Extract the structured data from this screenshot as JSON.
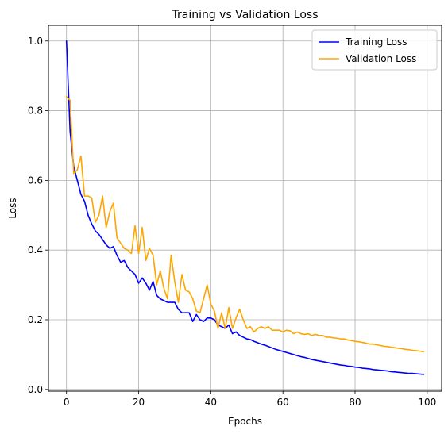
{
  "chart_data": {
    "type": "line",
    "title": "Training vs Validation Loss",
    "xlabel": "Epochs",
    "ylabel": "Loss",
    "xlim": [
      -5,
      104
    ],
    "ylim": [
      -0.005,
      1.045
    ],
    "xticks": [
      0,
      20,
      40,
      60,
      80,
      100
    ],
    "yticks": [
      0.0,
      0.2,
      0.4,
      0.6,
      0.8,
      1.0
    ],
    "xtick_labels": [
      "0",
      "20",
      "40",
      "60",
      "80",
      "100"
    ],
    "ytick_labels": [
      "0.0",
      "0.2",
      "0.4",
      "0.6",
      "0.8",
      "1.0"
    ],
    "grid": true,
    "legend_position": "top-right",
    "series": [
      {
        "name": "Training Loss",
        "color": "#0000ff",
        "x": [
          0,
          1,
          2,
          3,
          4,
          5,
          6,
          7,
          8,
          9,
          10,
          11,
          12,
          13,
          14,
          15,
          16,
          17,
          18,
          19,
          20,
          21,
          22,
          23,
          24,
          25,
          26,
          27,
          28,
          29,
          30,
          31,
          32,
          33,
          34,
          35,
          36,
          37,
          38,
          39,
          40,
          41,
          42,
          43,
          44,
          45,
          46,
          47,
          48,
          49,
          50,
          51,
          52,
          53,
          54,
          55,
          56,
          57,
          58,
          59,
          60,
          61,
          62,
          63,
          64,
          65,
          66,
          67,
          68,
          69,
          70,
          71,
          72,
          73,
          74,
          75,
          76,
          77,
          78,
          79,
          80,
          81,
          82,
          83,
          84,
          85,
          86,
          87,
          88,
          89,
          90,
          91,
          92,
          93,
          94,
          95,
          96,
          97,
          98,
          99
        ],
        "y": [
          1.0,
          0.74,
          0.64,
          0.6,
          0.56,
          0.54,
          0.5,
          0.475,
          0.455,
          0.445,
          0.43,
          0.415,
          0.405,
          0.41,
          0.385,
          0.365,
          0.37,
          0.35,
          0.34,
          0.33,
          0.305,
          0.32,
          0.305,
          0.285,
          0.31,
          0.27,
          0.26,
          0.255,
          0.25,
          0.25,
          0.25,
          0.23,
          0.22,
          0.22,
          0.22,
          0.195,
          0.215,
          0.2,
          0.195,
          0.205,
          0.205,
          0.2,
          0.185,
          0.18,
          0.175,
          0.185,
          0.16,
          0.165,
          0.155,
          0.15,
          0.145,
          0.143,
          0.138,
          0.134,
          0.13,
          0.127,
          0.123,
          0.119,
          0.115,
          0.112,
          0.109,
          0.106,
          0.103,
          0.1,
          0.097,
          0.094,
          0.092,
          0.089,
          0.086,
          0.084,
          0.082,
          0.08,
          0.078,
          0.076,
          0.074,
          0.072,
          0.07,
          0.069,
          0.067,
          0.066,
          0.064,
          0.063,
          0.061,
          0.06,
          0.059,
          0.057,
          0.056,
          0.055,
          0.054,
          0.053,
          0.051,
          0.05,
          0.049,
          0.048,
          0.047,
          0.046,
          0.046,
          0.045,
          0.044,
          0.043
        ]
      },
      {
        "name": "Validation Loss",
        "color": "#ffa500",
        "x": [
          0,
          1,
          2,
          3,
          4,
          5,
          6,
          7,
          8,
          9,
          10,
          11,
          12,
          13,
          14,
          15,
          16,
          17,
          18,
          19,
          20,
          21,
          22,
          23,
          24,
          25,
          26,
          27,
          28,
          29,
          30,
          31,
          32,
          33,
          34,
          35,
          36,
          37,
          38,
          39,
          40,
          41,
          42,
          43,
          44,
          45,
          46,
          47,
          48,
          49,
          50,
          51,
          52,
          53,
          54,
          55,
          56,
          57,
          58,
          59,
          60,
          61,
          62,
          63,
          64,
          65,
          66,
          67,
          68,
          69,
          70,
          71,
          72,
          73,
          74,
          75,
          76,
          77,
          78,
          79,
          80,
          81,
          82,
          83,
          84,
          85,
          86,
          87,
          88,
          89,
          90,
          91,
          92,
          93,
          94,
          95,
          96,
          97,
          98,
          99
        ],
        "y": [
          0.84,
          0.83,
          0.62,
          0.63,
          0.67,
          0.555,
          0.555,
          0.55,
          0.48,
          0.5,
          0.555,
          0.465,
          0.51,
          0.535,
          0.435,
          0.42,
          0.405,
          0.4,
          0.39,
          0.47,
          0.39,
          0.465,
          0.37,
          0.405,
          0.385,
          0.3,
          0.34,
          0.29,
          0.26,
          0.385,
          0.31,
          0.25,
          0.33,
          0.285,
          0.28,
          0.26,
          0.225,
          0.22,
          0.26,
          0.3,
          0.245,
          0.225,
          0.175,
          0.22,
          0.175,
          0.235,
          0.175,
          0.205,
          0.23,
          0.2,
          0.175,
          0.18,
          0.165,
          0.175,
          0.18,
          0.175,
          0.18,
          0.17,
          0.17,
          0.17,
          0.165,
          0.17,
          0.168,
          0.16,
          0.165,
          0.16,
          0.158,
          0.16,
          0.155,
          0.158,
          0.155,
          0.155,
          0.15,
          0.15,
          0.148,
          0.147,
          0.145,
          0.145,
          0.142,
          0.14,
          0.138,
          0.137,
          0.135,
          0.133,
          0.13,
          0.13,
          0.128,
          0.126,
          0.124,
          0.123,
          0.121,
          0.12,
          0.118,
          0.117,
          0.115,
          0.114,
          0.112,
          0.111,
          0.11,
          0.108
        ]
      }
    ]
  }
}
